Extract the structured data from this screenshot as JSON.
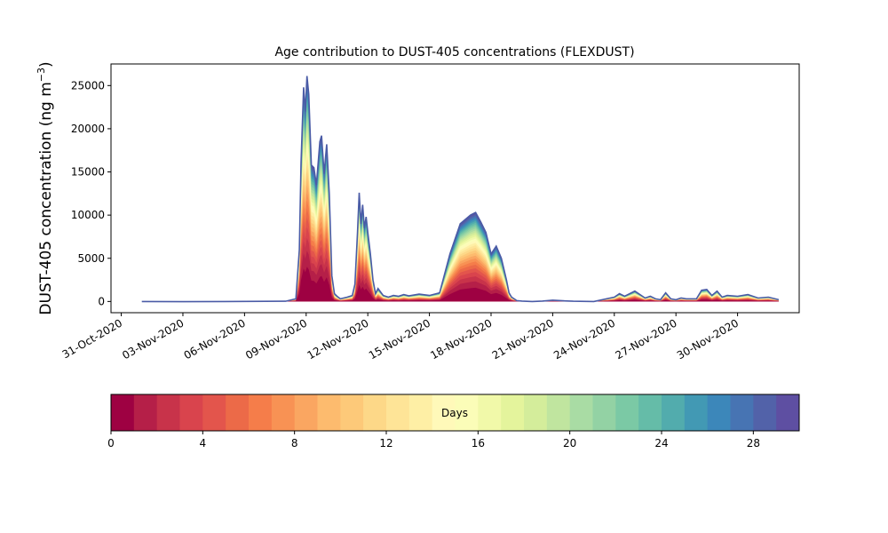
{
  "chart_data": {
    "type": "area",
    "title": "Age contribution to DUST-405 concentrations (FLEXDUST)",
    "ylabel": "DUST-405 concentration (ng m",
    "ylabel_sup": "−3",
    "ylabel_close": ")",
    "xlabel": "",
    "ylim": [
      -1300,
      27500
    ],
    "xlim": [
      "2020-10-30T12:00",
      "2020-12-03T00:00"
    ],
    "yticks": [
      0,
      5000,
      10000,
      15000,
      20000,
      25000
    ],
    "ytick_labels": [
      "0",
      "5000",
      "10000",
      "15000",
      "20000",
      "25000"
    ],
    "xticks": [
      "2020-10-31",
      "2020-11-03",
      "2020-11-06",
      "2020-11-09",
      "2020-11-12",
      "2020-11-15",
      "2020-11-18",
      "2020-11-21",
      "2020-11-24",
      "2020-11-27",
      "2020-11-30"
    ],
    "xtick_labels": [
      "31-Oct-2020",
      "03-Nov-2020",
      "06-Nov-2020",
      "09-Nov-2020",
      "12-Nov-2020",
      "15-Nov-2020",
      "18-Nov-2020",
      "21-Nov-2020",
      "24-Nov-2020",
      "27-Nov-2020",
      "30-Nov-2020"
    ],
    "grid": false,
    "line_color": "#4a5ba6",
    "total_series": {
      "x": [
        "2020-11-01T00:00",
        "2020-11-03T00:00",
        "2020-11-06T00:00",
        "2020-11-08T00:00",
        "2020-11-08T12:00",
        "2020-11-08T16:00",
        "2020-11-08T18:00",
        "2020-11-08T21:00",
        "2020-11-08T23:00",
        "2020-11-09T01:00",
        "2020-11-09T03:00",
        "2020-11-09T06:00",
        "2020-11-09T09:00",
        "2020-11-09T12:00",
        "2020-11-09T16:00",
        "2020-11-09T18:00",
        "2020-11-09T21:00",
        "2020-11-10T00:00",
        "2020-11-10T03:00",
        "2020-11-10T06:00",
        "2020-11-10T09:00",
        "2020-11-10T12:00",
        "2020-11-10T16:00",
        "2020-11-11T00:00",
        "2020-11-11T06:00",
        "2020-11-11T09:00",
        "2020-11-11T12:00",
        "2020-11-11T14:00",
        "2020-11-11T16:00",
        "2020-11-11T18:00",
        "2020-11-11T20:00",
        "2020-11-11T22:00",
        "2020-11-12T00:00",
        "2020-11-12T03:00",
        "2020-11-12T06:00",
        "2020-11-12T09:00",
        "2020-11-12T12:00",
        "2020-11-12T18:00",
        "2020-11-13T00:00",
        "2020-11-13T06:00",
        "2020-11-13T12:00",
        "2020-11-13T18:00",
        "2020-11-14T00:00",
        "2020-11-14T12:00",
        "2020-11-15T00:00",
        "2020-11-15T12:00",
        "2020-11-16T00:00",
        "2020-11-16T12:00",
        "2020-11-17T00:00",
        "2020-11-17T06:00",
        "2020-11-17T12:00",
        "2020-11-17T18:00",
        "2020-11-18T00:00",
        "2020-11-18T06:00",
        "2020-11-18T12:00",
        "2020-11-18T18:00",
        "2020-11-18T21:00",
        "2020-11-19T00:00",
        "2020-11-19T03:00",
        "2020-11-19T06:00",
        "2020-11-19T12:00",
        "2020-11-19T18:00",
        "2020-11-20T00:00",
        "2020-11-20T12:00",
        "2020-11-21T00:00",
        "2020-11-21T12:00",
        "2020-11-22T00:00",
        "2020-11-23T00:00",
        "2020-11-24T00:00",
        "2020-11-24T06:00",
        "2020-11-24T12:00",
        "2020-11-25T00:00",
        "2020-11-25T12:00",
        "2020-11-25T18:00",
        "2020-11-26T00:00",
        "2020-11-26T06:00",
        "2020-11-26T12:00",
        "2020-11-26T18:00",
        "2020-11-27T00:00",
        "2020-11-27T06:00",
        "2020-11-27T12:00",
        "2020-11-28T00:00",
        "2020-11-28T06:00",
        "2020-11-28T12:00",
        "2020-11-28T18:00",
        "2020-11-29T00:00",
        "2020-11-29T06:00",
        "2020-11-29T12:00",
        "2020-11-30T00:00",
        "2020-11-30T12:00",
        "2020-12-01T00:00",
        "2020-12-01T12:00",
        "2020-12-02T00:00"
      ],
      "y": [
        0,
        -20,
        10,
        30,
        300,
        6000,
        16000,
        24800,
        22000,
        26100,
        24000,
        15800,
        15500,
        13500,
        18500,
        19200,
        14800,
        18200,
        12500,
        3000,
        900,
        600,
        300,
        500,
        700,
        2000,
        8000,
        12600,
        9000,
        11200,
        8500,
        9800,
        8000,
        5500,
        2500,
        900,
        1500,
        700,
        500,
        700,
        600,
        800,
        650,
        850,
        700,
        1000,
        5500,
        9000,
        10000,
        10300,
        9200,
        8000,
        5500,
        6400,
        5000,
        2500,
        1000,
        500,
        300,
        100,
        50,
        20,
        0,
        50,
        150,
        80,
        30,
        0,
        500,
        900,
        600,
        1200,
        400,
        600,
        300,
        200,
        1000,
        300,
        200,
        400,
        300,
        300,
        1300,
        1400,
        700,
        1200,
        500,
        700,
        600,
        800,
        400,
        500,
        200
      ]
    },
    "colorbar": {
      "label": "Days",
      "range": [
        0,
        30
      ],
      "n_bins": 30,
      "ticks": [
        0,
        4,
        8,
        12,
        16,
        20,
        24,
        28
      ],
      "tick_labels": [
        "0",
        "4",
        "8",
        "12",
        "16",
        "20",
        "24",
        "28"
      ],
      "colors": [
        "#9e0142",
        "#b51f48",
        "#c8334a",
        "#d9444d",
        "#e3554c",
        "#ec6a48",
        "#f57d4a",
        "#f89254",
        "#faa661",
        "#fdbb6e",
        "#fdc979",
        "#fdd888",
        "#fee497",
        "#feefa5",
        "#fff9b9",
        "#fbfdb8",
        "#f1f9a9",
        "#e4f49c",
        "#d4ed9b",
        "#c0e59f",
        "#a9dca4",
        "#93d2a4",
        "#7bc9a5",
        "#65bca8",
        "#52acad",
        "#4299b4",
        "#3c87ba",
        "#4774b3",
        "#5262a9",
        "#5e4fa2"
      ]
    }
  }
}
